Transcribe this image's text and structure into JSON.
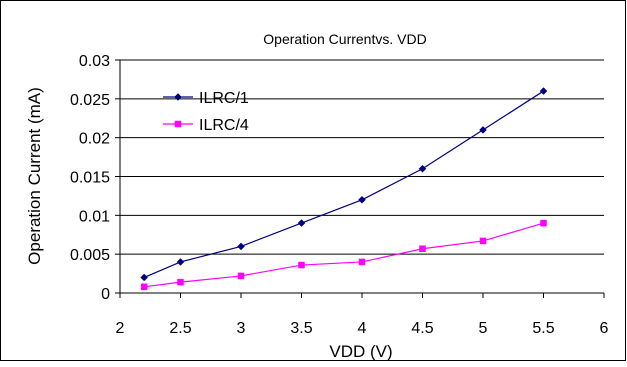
{
  "chart_data": {
    "type": "line",
    "title": "Operation Currentvs. VDD",
    "xlabel": "VDD (V)",
    "ylabel": "Operation Current (mA)",
    "xlim": [
      2,
      6
    ],
    "ylim": [
      0,
      0.03
    ],
    "x_ticks": [
      "2",
      "2.5",
      "3",
      "3.5",
      "4",
      "4.5",
      "5",
      "5.5",
      "6"
    ],
    "y_ticks": [
      "0",
      "0.005",
      "0.01",
      "0.015",
      "0.02",
      "0.025",
      "0.03"
    ],
    "grid": "horizontal",
    "legend_position": "top-left",
    "series": [
      {
        "name": "ILRC/1",
        "color": "#000080",
        "marker": "diamond",
        "x": [
          2.2,
          2.5,
          3.0,
          3.5,
          4.0,
          4.5,
          5.0,
          5.5
        ],
        "y": [
          0.002,
          0.004,
          0.006,
          0.009,
          0.012,
          0.016,
          0.021,
          0.026
        ]
      },
      {
        "name": "ILRC/4",
        "color": "#FF00FF",
        "marker": "square",
        "x": [
          2.2,
          2.5,
          3.0,
          3.5,
          4.0,
          4.5,
          5.0,
          5.5
        ],
        "y": [
          0.0008,
          0.0014,
          0.0022,
          0.0036,
          0.004,
          0.0057,
          0.0067,
          0.009
        ]
      }
    ]
  }
}
